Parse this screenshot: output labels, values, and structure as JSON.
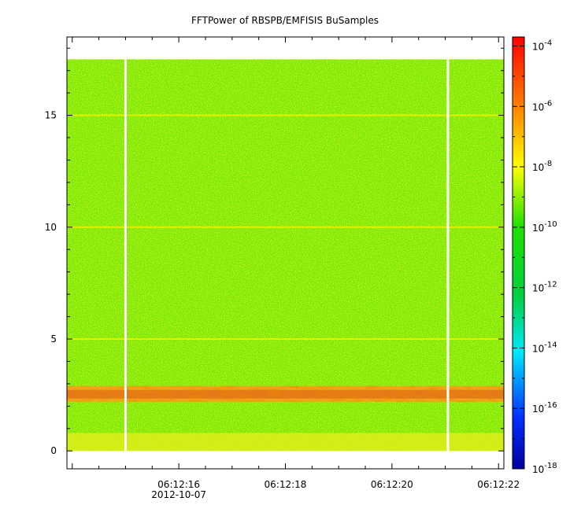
{
  "chart_data": {
    "type": "heatmap",
    "title": "FFTPower of RBSPB/EMFISIS  BuSamples",
    "xlabel": "",
    "ylabel": "",
    "x_tick_labels": [
      "06:12:16",
      "06:12:18",
      "06:12:20",
      "06:12:22"
    ],
    "x_date_label": "2012-10-07",
    "x_range_seconds": [
      13.9,
      22.1
    ],
    "y_ticks": [
      0,
      5,
      10,
      15
    ],
    "ylim": [
      -0.8,
      18.5
    ],
    "data_extent_y": [
      0,
      17.5
    ],
    "gaps_seconds": [
      15.0,
      21.05
    ],
    "colorbar": {
      "scale": "log",
      "range_exponents": [
        -18,
        -3.7
      ],
      "tick_exponents": [
        -18,
        -16,
        -14,
        -12,
        -10,
        -8,
        -6,
        -4
      ],
      "tick_base": "10",
      "colormap": [
        "#0000a0",
        "#0030ff",
        "#00e8ff",
        "#00d040",
        "#20e000",
        "#ffff00",
        "#ff8000",
        "#ff0000"
      ]
    },
    "features": [
      {
        "name": "harmonic line",
        "y": 15,
        "level_exponent": -8.5
      },
      {
        "name": "harmonic line",
        "y": 10,
        "level_exponent": -9.5
      },
      {
        "name": "harmonic line",
        "y": 5,
        "level_exponent": -9
      },
      {
        "name": "band",
        "y_range": [
          2.2,
          2.9
        ],
        "level_exponent": -6
      },
      {
        "name": "low-frequency floor",
        "y_range": [
          0,
          0.8
        ],
        "level_exponent": -8.5
      }
    ],
    "grid": false
  }
}
